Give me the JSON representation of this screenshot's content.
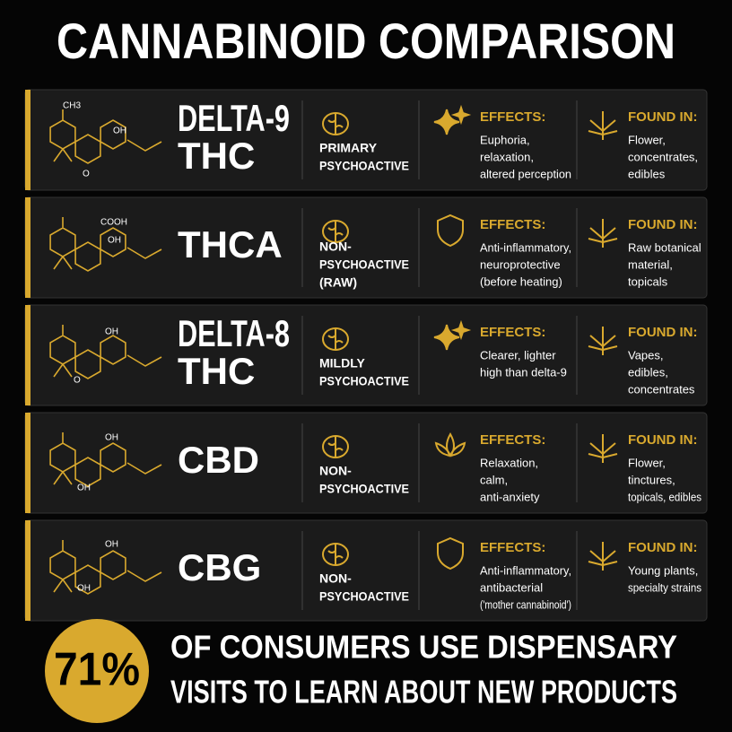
{
  "title": "CANNABINOID COMPARISON",
  "rows": [
    {
      "molecule_labels": [
        "CH3",
        "OH",
        "O"
      ],
      "name": [
        "DELTA-9",
        "THC"
      ],
      "psychoactivity": [
        "PRIMARY",
        "PSYCHOACTIVE"
      ],
      "effects_label": "EFFECTS:",
      "effects": [
        "Euphoria,",
        "relaxation,",
        "altered perception"
      ],
      "found_label": "FOUND IN:",
      "found": [
        "Flower,",
        "concentrates,",
        "edibles"
      ]
    },
    {
      "molecule_labels": [
        "COOH",
        "OH"
      ],
      "name": [
        "THCA"
      ],
      "psychoactivity": [
        "NON-",
        "PSYCHOACTIVE",
        "(RAW)"
      ],
      "effects_label": "EFFECTS:",
      "effects": [
        "Anti-inflammatory,",
        "neuroprotective",
        "(before heating)"
      ],
      "found_label": "FOUND IN:",
      "found": [
        "Raw botanical",
        "material,",
        "topicals"
      ]
    },
    {
      "molecule_labels": [
        "OH",
        "O"
      ],
      "name": [
        "DELTA-8",
        "THC"
      ],
      "psychoactivity": [
        "MILDLY",
        "PSYCHOACTIVE"
      ],
      "effects_label": "EFFECTS:",
      "effects": [
        "Clearer, lighter",
        "high than delta-9"
      ],
      "found_label": "FOUND IN:",
      "found": [
        "Vapes,",
        "edibles,",
        "concentrates"
      ]
    },
    {
      "molecule_labels": [
        "OH",
        "OH"
      ],
      "name": [
        "CBD"
      ],
      "psychoactivity": [
        "NON-",
        "PSYCHOACTIVE"
      ],
      "effects_label": "EFFECTS:",
      "effects": [
        "Relaxation,",
        "calm,",
        "anti-anxiety"
      ],
      "found_label": "FOUND IN:",
      "found": [
        "Flower,",
        "tinctures,",
        "topicals, edibles"
      ]
    },
    {
      "molecule_labels": [
        "OH",
        "OH"
      ],
      "name": [
        "CBG"
      ],
      "psychoactivity": [
        "NON-",
        "PSYCHOACTIVE"
      ],
      "effects_label": "EFFECTS:",
      "effects": [
        "Anti-inflammatory,",
        "antibacterial",
        "('mother cannabinoid')"
      ],
      "found_label": "FOUND IN:",
      "found": [
        "Young plants,",
        "specialty strains"
      ]
    }
  ],
  "footer": {
    "stat": "71%",
    "text": [
      "OF CONSUMERS USE DISPENSARY",
      "VISITS TO LEARN ABOUT NEW PRODUCTS"
    ]
  }
}
